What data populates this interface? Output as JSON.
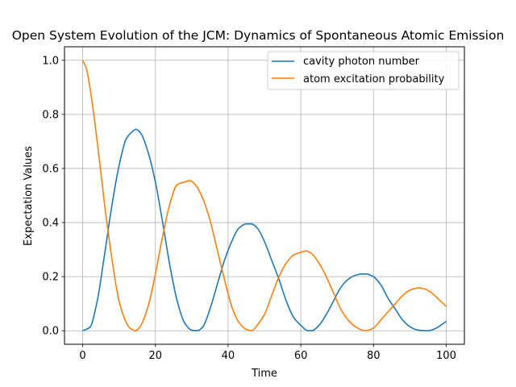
{
  "chart_data": {
    "type": "line",
    "title": "Open System Evolution of the JCM: Dynamics of Spontaneous Atomic Emission",
    "xlabel": "Time",
    "ylabel": "Expectation Values",
    "xlim": [
      -5,
      105
    ],
    "ylim": [
      -0.05,
      1.05
    ],
    "xticks": [
      0,
      20,
      40,
      60,
      80,
      100
    ],
    "yticks": [
      0.0,
      0.2,
      0.4,
      0.6,
      0.8,
      1.0
    ],
    "xtick_labels": [
      "0",
      "20",
      "40",
      "60",
      "80",
      "100"
    ],
    "ytick_labels": [
      "0.0",
      "0.2",
      "0.4",
      "0.6",
      "0.8",
      "1.0"
    ],
    "grid": true,
    "legend": "upper right",
    "series": [
      {
        "name": "cavity photon number",
        "color": "#1f77b4",
        "x": [
          0,
          2,
          4,
          6,
          8,
          10,
          12,
          14,
          14.6,
          16,
          18,
          20,
          22,
          24,
          26,
          28,
          30,
          31.5,
          33,
          35,
          37,
          39,
          41,
          43,
          45,
          46.4,
          48,
          50,
          52,
          54,
          56,
          58,
          60,
          62,
          63,
          65,
          67,
          69,
          71,
          73,
          75,
          77,
          78,
          80,
          82,
          84,
          86,
          88,
          90,
          92,
          94,
          95,
          97,
          99,
          100
        ],
        "y": [
          0.0,
          0.013,
          0.11,
          0.28,
          0.46,
          0.61,
          0.71,
          0.74,
          0.745,
          0.73,
          0.66,
          0.55,
          0.4,
          0.24,
          0.11,
          0.03,
          0.002,
          0.0,
          0.013,
          0.08,
          0.17,
          0.26,
          0.33,
          0.38,
          0.395,
          0.395,
          0.38,
          0.33,
          0.26,
          0.19,
          0.11,
          0.05,
          0.02,
          0.0,
          0.0,
          0.02,
          0.06,
          0.11,
          0.16,
          0.19,
          0.205,
          0.21,
          0.21,
          0.2,
          0.17,
          0.12,
          0.08,
          0.04,
          0.015,
          0.003,
          0.0,
          0.0,
          0.008,
          0.025,
          0.035
        ]
      },
      {
        "name": "atom excitation probability",
        "color": "#ff7f0e",
        "x": [
          0,
          1,
          2,
          4,
          6,
          8,
          10,
          12,
          13,
          14.5,
          16,
          18,
          20,
          22,
          24,
          26,
          28,
          29.5,
          31,
          33,
          35,
          37,
          39,
          41,
          43,
          45,
          46.5,
          48,
          50,
          52,
          54,
          56,
          58,
          60,
          61.5,
          63,
          65,
          67,
          69,
          71,
          73,
          75,
          77,
          78,
          80,
          82,
          84,
          86,
          88,
          90,
          92.5,
          94,
          96,
          98,
          100
        ],
        "y": [
          1.0,
          0.97,
          0.9,
          0.7,
          0.47,
          0.27,
          0.11,
          0.03,
          0.01,
          0.0,
          0.02,
          0.09,
          0.21,
          0.35,
          0.47,
          0.54,
          0.55,
          0.555,
          0.54,
          0.49,
          0.41,
          0.3,
          0.19,
          0.09,
          0.03,
          0.005,
          0.0,
          0.02,
          0.06,
          0.13,
          0.2,
          0.25,
          0.28,
          0.29,
          0.295,
          0.285,
          0.25,
          0.2,
          0.14,
          0.08,
          0.04,
          0.015,
          0.002,
          0.0,
          0.01,
          0.04,
          0.07,
          0.1,
          0.13,
          0.15,
          0.158,
          0.155,
          0.14,
          0.115,
          0.09
        ]
      }
    ]
  }
}
